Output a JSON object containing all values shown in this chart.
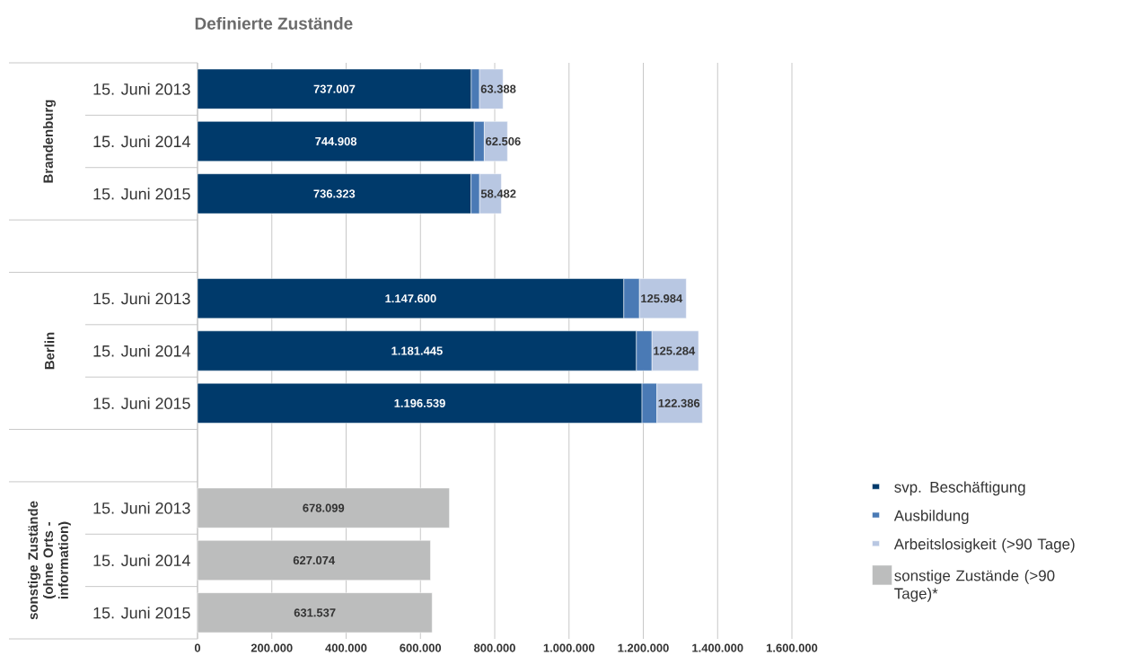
{
  "chart_data": {
    "type": "bar",
    "title": "Definierte Zustände",
    "orientation": "horizontal",
    "stacked": true,
    "categories": [
      "15. Juni 2013",
      "15. Juni 2014",
      "15. Juni 2015",
      null,
      "15. Juni 2013",
      "15. Juni 2014",
      "15. Juni 2015",
      null,
      "15. Juni 2013",
      "15. Juni 2014",
      "15. Juni 2015"
    ],
    "series": [
      {
        "name": "svp. Beschäftigung",
        "color": "#003a6b",
        "values": [
          737007,
          744908,
          736323,
          null,
          1147600,
          1181445,
          1196539,
          null,
          null,
          null,
          null
        ],
        "value_labels": [
          "737.007",
          "744.908",
          "736.323",
          null,
          "1.147.600",
          "1.181.445",
          "1.196.539",
          null,
          null,
          null,
          null
        ]
      },
      {
        "name": "Ausbildung",
        "color": "#4a7ab5",
        "values": [
          22000,
          27000,
          23000,
          null,
          42000,
          42000,
          40000,
          null,
          null,
          null,
          null
        ]
      },
      {
        "name": "Arbeitslosigkeit (>90 Tage)",
        "color": "#b8c7e2",
        "values": [
          63388,
          62506,
          58482,
          null,
          125984,
          125284,
          122386,
          null,
          null,
          null,
          null
        ],
        "value_labels": [
          "63.388",
          "62.506",
          "58.482",
          null,
          "125.984",
          "125.284",
          "122.386",
          null,
          null,
          null,
          null
        ]
      },
      {
        "name": "sonstige Zustände (>90 Tage)*",
        "color": "#bcbdbd",
        "values": [
          null,
          null,
          null,
          null,
          null,
          null,
          null,
          null,
          678099,
          627074,
          631537
        ],
        "value_labels": [
          null,
          null,
          null,
          null,
          null,
          null,
          null,
          null,
          "678.099",
          "627.074",
          "631.537"
        ]
      }
    ],
    "xlim": [
      0,
      1600000
    ],
    "xticks": [
      0,
      {
        "value": 200000,
        "label": "200.000"
      },
      {
        "value": 400000,
        "label": "400.000"
      },
      {
        "value": 600000,
        "label": "600.000"
      },
      {
        "value": 800000,
        "label": "800.000"
      },
      {
        "value": 1000000,
        "label": "1.000.000"
      },
      {
        "value": 1200000,
        "label": "1.200.000"
      },
      {
        "value": 1400000,
        "label": "1.400.000"
      },
      {
        "value": 1600000,
        "label": "1.600.000"
      }
    ],
    "grid": "x",
    "legend": "right",
    "annotations": [
      "Brandenburg",
      "Berlin",
      "sonstige Zustände (ohne Orts - information)"
    ]
  }
}
